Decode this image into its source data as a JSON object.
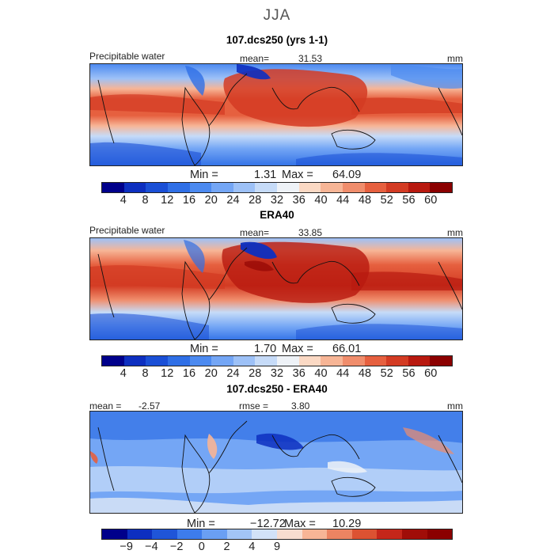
{
  "season": "JJA",
  "units": "mm",
  "panels": [
    {
      "title": "107.dcs250 (yrs 1-1)",
      "field": "Precipitable water",
      "stat": "mean=",
      "stat_value": "31.53",
      "min_label": "Min =",
      "min": "1.31",
      "max_label": "Max =",
      "max": "64.09"
    },
    {
      "title": "ERA40",
      "field": "Precipitable water",
      "stat": "mean=",
      "stat_value": "33.85",
      "min_label": "Min =",
      "min": "1.70",
      "max_label": "Max =",
      "max": "66.01"
    },
    {
      "title": "107.dcs250 - ERA40",
      "mean_label": "mean =",
      "mean_value": "-2.57",
      "rmse_label": "rmse =",
      "rmse_value": "3.80",
      "min_label": "Min =",
      "min": "−12.72",
      "max_label": "Max =",
      "max": "10.29"
    }
  ],
  "chart_data": [
    {
      "type": "heatmap",
      "title": "107.dcs250 (yrs 1-1)",
      "variable": "Precipitable water",
      "units": "mm",
      "mean": 31.53,
      "min": 1.31,
      "max": 64.09,
      "colorbar_ticks": [
        "4",
        "8",
        "12",
        "16",
        "20",
        "24",
        "28",
        "32",
        "36",
        "40",
        "44",
        "48",
        "52",
        "56",
        "60"
      ],
      "colorbar_colors": [
        "#00008b",
        "#0d2fc0",
        "#1a4fd6",
        "#2f6fe6",
        "#4c8af0",
        "#74a6f5",
        "#9dc1f7",
        "#c6dbf8",
        "#eef2f7",
        "#fbd9c4",
        "#f7b596",
        "#f08d6c",
        "#e6603f",
        "#d33b23",
        "#b8190f",
        "#8b0000"
      ]
    },
    {
      "type": "heatmap",
      "title": "ERA40",
      "variable": "Precipitable water",
      "units": "mm",
      "mean": 33.85,
      "min": 1.7,
      "max": 66.01,
      "colorbar_ticks": [
        "4",
        "8",
        "12",
        "16",
        "20",
        "24",
        "28",
        "32",
        "36",
        "40",
        "44",
        "48",
        "52",
        "56",
        "60"
      ],
      "colorbar_colors": [
        "#00008b",
        "#0d2fc0",
        "#1a4fd6",
        "#2f6fe6",
        "#4c8af0",
        "#74a6f5",
        "#9dc1f7",
        "#c6dbf8",
        "#eef2f7",
        "#fbd9c4",
        "#f7b596",
        "#f08d6c",
        "#e6603f",
        "#d33b23",
        "#b8190f",
        "#8b0000"
      ]
    },
    {
      "type": "heatmap",
      "title": "107.dcs250 - ERA40",
      "units": "mm",
      "mean": -2.57,
      "rmse": 3.8,
      "min": -12.72,
      "max": 10.29,
      "colorbar_ticks": [
        "−9",
        "−4",
        "−2",
        "0",
        "2",
        "4",
        "9"
      ],
      "colorbar_colors": [
        "#00008b",
        "#0d2fc0",
        "#1f55d8",
        "#3d7cec",
        "#6a9ff3",
        "#a2c4f6",
        "#d2e2f8",
        "#f7ddd0",
        "#f7b596",
        "#ec8462",
        "#dc5232",
        "#c5261a",
        "#a00d08",
        "#8b0000"
      ]
    }
  ]
}
